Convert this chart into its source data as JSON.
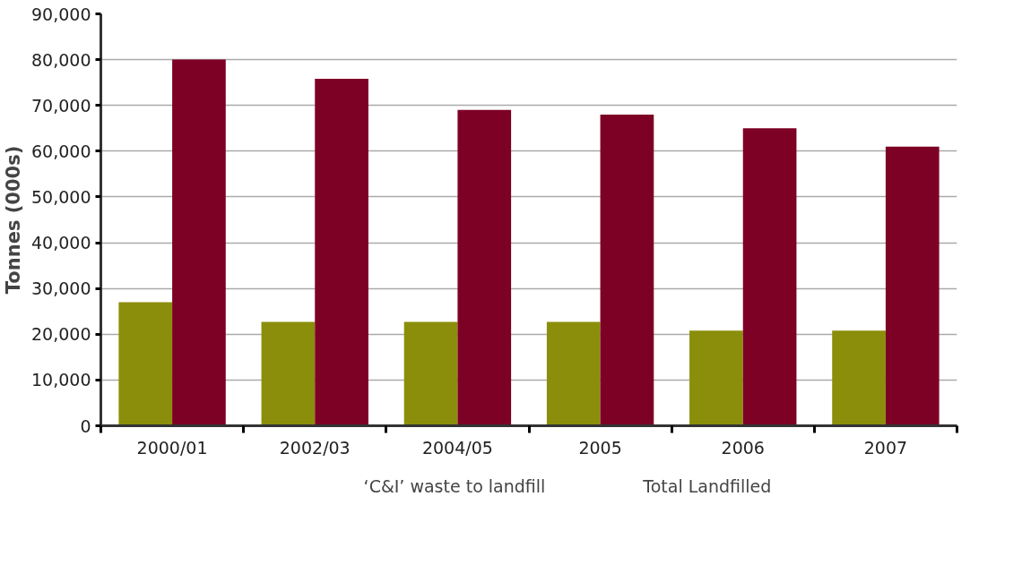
{
  "chart_data": {
    "type": "bar",
    "ylabel": "Tonnes (000s)",
    "categories": [
      "2000/01",
      "2002/03",
      "2004/05",
      "2005",
      "2006",
      "2007"
    ],
    "series": [
      {
        "name": "‘C&I’ waste to landfill",
        "color": "#8b8e0a",
        "values": [
          27000,
          22700,
          22700,
          22700,
          20800,
          20800
        ]
      },
      {
        "name": "Total Landfilled",
        "color": "#7d0025",
        "values": [
          80000,
          75800,
          69000,
          68000,
          65000,
          61000
        ]
      }
    ],
    "ylim": [
      0,
      90000
    ],
    "yticks": [
      {
        "value": 0,
        "label": "0"
      },
      {
        "value": 10000,
        "label": "10,000"
      },
      {
        "value": 20000,
        "label": "20,000"
      },
      {
        "value": 30000,
        "label": "30,000"
      },
      {
        "value": 40000,
        "label": "40,000"
      },
      {
        "value": 50000,
        "label": "50,000"
      },
      {
        "value": 60000,
        "label": "60,000"
      },
      {
        "value": 70000,
        "label": "70,000"
      },
      {
        "value": 80000,
        "label": "80,000"
      },
      {
        "value": 90000,
        "label": "90,000"
      }
    ],
    "grid": "y",
    "legend": "bottom"
  }
}
